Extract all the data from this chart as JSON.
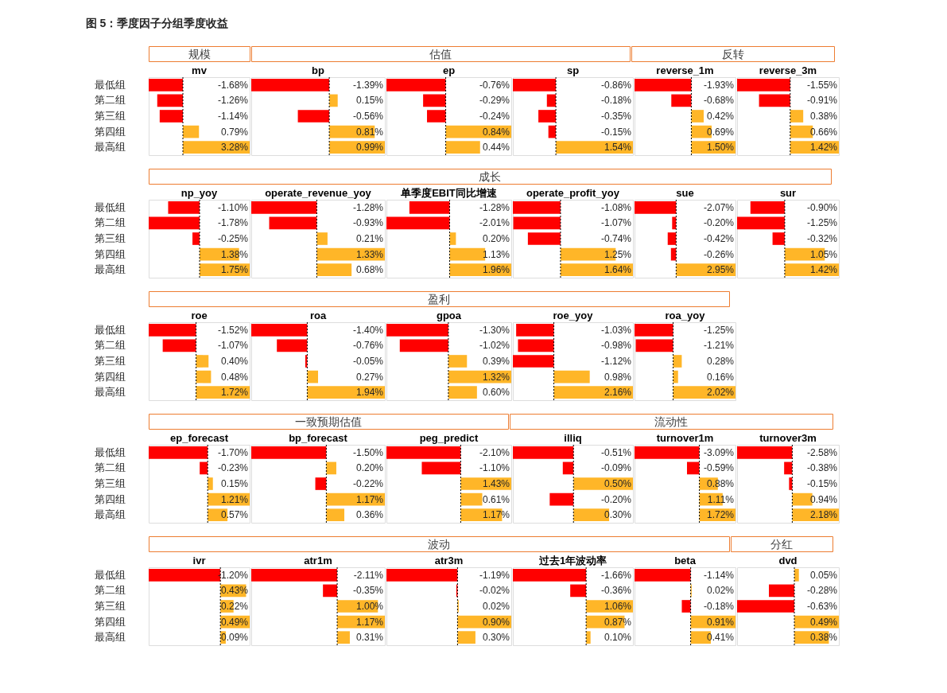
{
  "chart_data": [
    {
      "type": "other",
      "title": "图 5：季度因子分组季度收益"
    },
    {
      "type": "other",
      "title": "规模"
    },
    {
      "type": "bar",
      "orientation": "horizontal",
      "title": "mv",
      "categories": [
        "最低组",
        "第二组",
        "第三组",
        "第四组",
        "最高组"
      ],
      "values": [
        -1.68,
        -1.26,
        -1.14,
        0.79,
        3.28
      ],
      "colors": [
        "#ff0000",
        "#ff0000",
        "#ff0000",
        "#ffb628",
        "#ffb628"
      ],
      "value_labels": [
        "-1.68%",
        "-1.26%",
        "-1.14%",
        "0.79%",
        "3.28%"
      ],
      "ref_lines": [
        {
          "axis": "x",
          "value": 0,
          "color": "#000000",
          "line_style": "dashed"
        }
      ],
      "tick_labels": "y"
    },
    {
      "type": "other",
      "title": "估值"
    },
    {
      "type": "bar",
      "orientation": "horizontal",
      "title": "bp",
      "categories": [
        "最低组",
        "第二组",
        "第三组",
        "第四组",
        "最高组"
      ],
      "values": [
        -1.39,
        0.15,
        -0.56,
        0.81,
        0.99
      ],
      "colors": [
        "#ff0000",
        "#ffb628",
        "#ff0000",
        "#ffb628",
        "#ffb628"
      ],
      "value_labels": [
        "-1.39%",
        "0.15%",
        "-0.56%",
        "0.81%",
        "0.99%"
      ],
      "ref_lines": [
        {
          "axis": "x",
          "value": 0,
          "color": "#000000",
          "line_style": "dashed"
        }
      ],
      "tick_labels": false
    },
    {
      "type": "bar",
      "orientation": "horizontal",
      "title": "ep",
      "categories": [
        "最低组",
        "第二组",
        "第三组",
        "第四组",
        "最高组"
      ],
      "values": [
        -0.76,
        -0.29,
        -0.24,
        0.84,
        0.44
      ],
      "colors": [
        "#ff0000",
        "#ff0000",
        "#ff0000",
        "#ffb628",
        "#ffb628"
      ],
      "value_labels": [
        "-0.76%",
        "-0.29%",
        "-0.24%",
        "0.84%",
        "0.44%"
      ],
      "ref_lines": [
        {
          "axis": "x",
          "value": 0,
          "color": "#000000",
          "line_style": "dashed"
        }
      ],
      "tick_labels": false
    },
    {
      "type": "bar",
      "orientation": "horizontal",
      "title": "sp",
      "categories": [
        "最低组",
        "第二组",
        "第三组",
        "第四组",
        "最高组"
      ],
      "values": [
        -0.86,
        -0.18,
        -0.35,
        -0.15,
        1.54
      ],
      "colors": [
        "#ff0000",
        "#ff0000",
        "#ff0000",
        "#ff0000",
        "#ffb628"
      ],
      "value_labels": [
        "-0.86%",
        "-0.18%",
        "-0.35%",
        "-0.15%",
        "1.54%"
      ],
      "ref_lines": [
        {
          "axis": "x",
          "value": 0,
          "color": "#000000",
          "line_style": "dashed"
        }
      ],
      "tick_labels": false
    },
    {
      "type": "other",
      "title": "反转"
    },
    {
      "type": "bar",
      "orientation": "horizontal",
      "title": "reverse_1m",
      "categories": [
        "最低组",
        "第二组",
        "第三组",
        "第四组",
        "最高组"
      ],
      "values": [
        -1.93,
        -0.68,
        0.42,
        0.69,
        1.5
      ],
      "colors": [
        "#ff0000",
        "#ff0000",
        "#ffb628",
        "#ffb628",
        "#ffb628"
      ],
      "value_labels": [
        "-1.93%",
        "-0.68%",
        "0.42%",
        "0.69%",
        "1.50%"
      ],
      "ref_lines": [
        {
          "axis": "x",
          "value": 0,
          "color": "#000000",
          "line_style": "dashed"
        }
      ],
      "tick_labels": false
    },
    {
      "type": "bar",
      "orientation": "horizontal",
      "title": "reverse_3m",
      "categories": [
        "最低组",
        "第二组",
        "第三组",
        "第四组",
        "最高组"
      ],
      "values": [
        -1.55,
        -0.91,
        0.38,
        0.66,
        1.42
      ],
      "colors": [
        "#ff0000",
        "#ff0000",
        "#ffb628",
        "#ffb628",
        "#ffb628"
      ],
      "value_labels": [
        "-1.55%",
        "-0.91%",
        "0.38%",
        "0.66%",
        "1.42%"
      ],
      "ref_lines": [
        {
          "axis": "x",
          "value": 0,
          "color": "#000000",
          "line_style": "dashed"
        }
      ],
      "tick_labels": false
    },
    {
      "type": "other",
      "title": "成长"
    },
    {
      "type": "bar",
      "orientation": "horizontal",
      "title": "np_yoy",
      "categories": [
        "最低组",
        "第二组",
        "第三组",
        "第四组",
        "最高组"
      ],
      "values": [
        -1.1,
        -1.78,
        -0.25,
        1.38,
        1.75
      ],
      "colors": [
        "#ff0000",
        "#ff0000",
        "#ff0000",
        "#ffb628",
        "#ffb628"
      ],
      "value_labels": [
        "-1.10%",
        "-1.78%",
        "-0.25%",
        "1.38%",
        "1.75%"
      ],
      "ref_lines": [
        {
          "axis": "x",
          "value": 0,
          "color": "#000000",
          "line_style": "dashed"
        }
      ],
      "tick_labels": "y"
    },
    {
      "type": "bar",
      "orientation": "horizontal",
      "title": "operate_revenue_yoy",
      "categories": [
        "最低组",
        "第二组",
        "第三组",
        "第四组",
        "最高组"
      ],
      "values": [
        -1.28,
        -0.93,
        0.21,
        1.33,
        0.68
      ],
      "colors": [
        "#ff0000",
        "#ff0000",
        "#ffb628",
        "#ffb628",
        "#ffb628"
      ],
      "value_labels": [
        "-1.28%",
        "-0.93%",
        "0.21%",
        "1.33%",
        "0.68%"
      ],
      "ref_lines": [
        {
          "axis": "x",
          "value": 0,
          "color": "#000000",
          "line_style": "dashed"
        }
      ],
      "tick_labels": false
    },
    {
      "type": "bar",
      "orientation": "horizontal",
      "title": "单季度EBIT同比增速",
      "categories": [
        "最低组",
        "第二组",
        "第三组",
        "第四组",
        "最高组"
      ],
      "values": [
        -1.28,
        -2.01,
        0.2,
        1.13,
        1.96
      ],
      "colors": [
        "#ff0000",
        "#ff0000",
        "#ffb628",
        "#ffb628",
        "#ffb628"
      ],
      "value_labels": [
        "-1.28%",
        "-2.01%",
        "0.20%",
        "1.13%",
        "1.96%"
      ],
      "ref_lines": [
        {
          "axis": "x",
          "value": 0,
          "color": "#000000",
          "line_style": "dashed"
        }
      ],
      "tick_labels": false
    },
    {
      "type": "bar",
      "orientation": "horizontal",
      "title": "operate_profit_yoy",
      "categories": [
        "最低组",
        "第二组",
        "第三组",
        "第四组",
        "最高组"
      ],
      "values": [
        -1.08,
        -1.07,
        -0.74,
        1.25,
        1.64
      ],
      "colors": [
        "#ff0000",
        "#ff0000",
        "#ff0000",
        "#ffb628",
        "#ffb628"
      ],
      "value_labels": [
        "-1.08%",
        "-1.07%",
        "-0.74%",
        "1.25%",
        "1.64%"
      ],
      "ref_lines": [
        {
          "axis": "x",
          "value": 0,
          "color": "#000000",
          "line_style": "dashed"
        }
      ],
      "tick_labels": false
    },
    {
      "type": "bar",
      "orientation": "horizontal",
      "title": "sue",
      "categories": [
        "最低组",
        "第二组",
        "第三组",
        "第四组",
        "最高组"
      ],
      "values": [
        -2.07,
        -0.2,
        -0.42,
        -0.26,
        2.95
      ],
      "colors": [
        "#ff0000",
        "#ff0000",
        "#ff0000",
        "#ff0000",
        "#ffb628"
      ],
      "value_labels": [
        "-2.07%",
        "-0.20%",
        "-0.42%",
        "-0.26%",
        "2.95%"
      ],
      "ref_lines": [
        {
          "axis": "x",
          "value": 0,
          "color": "#000000",
          "line_style": "dashed"
        }
      ],
      "tick_labels": false
    },
    {
      "type": "bar",
      "orientation": "horizontal",
      "title": "sur",
      "categories": [
        "最低组",
        "第二组",
        "第三组",
        "第四组",
        "最高组"
      ],
      "values": [
        -0.9,
        -1.25,
        -0.32,
        1.05,
        1.42
      ],
      "colors": [
        "#ff0000",
        "#ff0000",
        "#ff0000",
        "#ffb628",
        "#ffb628"
      ],
      "value_labels": [
        "-0.90%",
        "-1.25%",
        "-0.32%",
        "1.05%",
        "1.42%"
      ],
      "ref_lines": [
        {
          "axis": "x",
          "value": 0,
          "color": "#000000",
          "line_style": "dashed"
        }
      ],
      "tick_labels": false
    },
    {
      "type": "other",
      "title": "盈利"
    },
    {
      "type": "bar",
      "orientation": "horizontal",
      "title": "roe",
      "categories": [
        "最低组",
        "第二组",
        "第三组",
        "第四组",
        "最高组"
      ],
      "values": [
        -1.52,
        -1.07,
        0.4,
        0.48,
        1.72
      ],
      "colors": [
        "#ff0000",
        "#ff0000",
        "#ffb628",
        "#ffb628",
        "#ffb628"
      ],
      "value_labels": [
        "-1.52%",
        "-1.07%",
        "0.40%",
        "0.48%",
        "1.72%"
      ],
      "ref_lines": [
        {
          "axis": "x",
          "value": 0,
          "color": "#000000",
          "line_style": "dashed"
        }
      ],
      "tick_labels": "y"
    },
    {
      "type": "bar",
      "orientation": "horizontal",
      "title": "roa",
      "categories": [
        "最低组",
        "第二组",
        "第三组",
        "第四组",
        "最高组"
      ],
      "values": [
        -1.4,
        -0.76,
        -0.05,
        0.27,
        1.94
      ],
      "colors": [
        "#ff0000",
        "#ff0000",
        "#ff0000",
        "#ffb628",
        "#ffb628"
      ],
      "value_labels": [
        "-1.40%",
        "-0.76%",
        "-0.05%",
        "0.27%",
        "1.94%"
      ],
      "ref_lines": [
        {
          "axis": "x",
          "value": 0,
          "color": "#000000",
          "line_style": "dashed"
        }
      ],
      "tick_labels": false
    },
    {
      "type": "bar",
      "orientation": "horizontal",
      "title": "gpoa",
      "categories": [
        "最低组",
        "第二组",
        "第三组",
        "第四组",
        "最高组"
      ],
      "values": [
        -1.3,
        -1.02,
        0.39,
        1.32,
        0.6
      ],
      "colors": [
        "#ff0000",
        "#ff0000",
        "#ffb628",
        "#ffb628",
        "#ffb628"
      ],
      "value_labels": [
        "-1.30%",
        "-1.02%",
        "0.39%",
        "1.32%",
        "0.60%"
      ],
      "ref_lines": [
        {
          "axis": "x",
          "value": 0,
          "color": "#000000",
          "line_style": "dashed"
        }
      ],
      "tick_labels": false
    },
    {
      "type": "bar",
      "orientation": "horizontal",
      "title": "roe_yoy",
      "categories": [
        "最低组",
        "第二组",
        "第三组",
        "第四组",
        "最高组"
      ],
      "values": [
        -1.03,
        -0.98,
        -1.12,
        0.98,
        2.16
      ],
      "colors": [
        "#ff0000",
        "#ff0000",
        "#ff0000",
        "#ffb628",
        "#ffb628"
      ],
      "value_labels": [
        "-1.03%",
        "-0.98%",
        "-1.12%",
        "0.98%",
        "2.16%"
      ],
      "ref_lines": [
        {
          "axis": "x",
          "value": 0,
          "color": "#000000",
          "line_style": "dashed"
        }
      ],
      "tick_labels": false
    },
    {
      "type": "bar",
      "orientation": "horizontal",
      "title": "roa_yoy",
      "categories": [
        "最低组",
        "第二组",
        "第三组",
        "第四组",
        "最高组"
      ],
      "values": [
        -1.25,
        -1.21,
        0.28,
        0.16,
        2.02
      ],
      "colors": [
        "#ff0000",
        "#ff0000",
        "#ffb628",
        "#ffb628",
        "#ffb628"
      ],
      "value_labels": [
        "-1.25%",
        "-1.21%",
        "0.28%",
        "0.16%",
        "2.02%"
      ],
      "ref_lines": [
        {
          "axis": "x",
          "value": 0,
          "color": "#000000",
          "line_style": "dashed"
        }
      ],
      "tick_labels": false
    },
    {
      "type": "other",
      "title": "一致预期估值"
    },
    {
      "type": "bar",
      "orientation": "horizontal",
      "title": "ep_forecast",
      "categories": [
        "最低组",
        "第二组",
        "第三组",
        "第四组",
        "最高组"
      ],
      "values": [
        -1.7,
        -0.23,
        0.15,
        1.21,
        0.57
      ],
      "colors": [
        "#ff0000",
        "#ff0000",
        "#ffb628",
        "#ffb628",
        "#ffb628"
      ],
      "value_labels": [
        "-1.70%",
        "-0.23%",
        "0.15%",
        "1.21%",
        "0.57%"
      ],
      "ref_lines": [
        {
          "axis": "x",
          "value": 0,
          "color": "#000000",
          "line_style": "dashed"
        }
      ],
      "tick_labels": "y"
    },
    {
      "type": "bar",
      "orientation": "horizontal",
      "title": "bp_forecast",
      "categories": [
        "最低组",
        "第二组",
        "第三组",
        "第四组",
        "最高组"
      ],
      "values": [
        -1.5,
        0.2,
        -0.22,
        1.17,
        0.36
      ],
      "colors": [
        "#ff0000",
        "#ffb628",
        "#ff0000",
        "#ffb628",
        "#ffb628"
      ],
      "value_labels": [
        "-1.50%",
        "0.20%",
        "-0.22%",
        "1.17%",
        "0.36%"
      ],
      "ref_lines": [
        {
          "axis": "x",
          "value": 0,
          "color": "#000000",
          "line_style": "dashed"
        }
      ],
      "tick_labels": false
    },
    {
      "type": "bar",
      "orientation": "horizontal",
      "title": "peg_predict",
      "categories": [
        "最低组",
        "第二组",
        "第三组",
        "第四组",
        "最高组"
      ],
      "values": [
        -2.1,
        -1.1,
        1.43,
        0.61,
        1.17
      ],
      "colors": [
        "#ff0000",
        "#ff0000",
        "#ffb628",
        "#ffb628",
        "#ffb628"
      ],
      "value_labels": [
        "-2.10%",
        "-1.10%",
        "1.43%",
        "0.61%",
        "1.17%"
      ],
      "ref_lines": [
        {
          "axis": "x",
          "value": 0,
          "color": "#000000",
          "line_style": "dashed"
        }
      ],
      "tick_labels": false
    },
    {
      "type": "other",
      "title": "流动性"
    },
    {
      "type": "bar",
      "orientation": "horizontal",
      "title": "illiq",
      "categories": [
        "最低组",
        "第二组",
        "第三组",
        "第四组",
        "最高组"
      ],
      "values": [
        -0.51,
        -0.09,
        0.5,
        -0.2,
        0.3
      ],
      "colors": [
        "#ff0000",
        "#ff0000",
        "#ffb628",
        "#ff0000",
        "#ffb628"
      ],
      "value_labels": [
        "-0.51%",
        "-0.09%",
        "0.50%",
        "-0.20%",
        "0.30%"
      ],
      "ref_lines": [
        {
          "axis": "x",
          "value": 0,
          "color": "#000000",
          "line_style": "dashed"
        }
      ],
      "tick_labels": false
    },
    {
      "type": "bar",
      "orientation": "horizontal",
      "title": "turnover1m",
      "categories": [
        "最低组",
        "第二组",
        "第三组",
        "第四组",
        "最高组"
      ],
      "values": [
        -3.09,
        -0.59,
        0.88,
        1.11,
        1.72
      ],
      "colors": [
        "#ff0000",
        "#ff0000",
        "#ffb628",
        "#ffb628",
        "#ffb628"
      ],
      "value_labels": [
        "-3.09%",
        "-0.59%",
        "0.88%",
        "1.11%",
        "1.72%"
      ],
      "ref_lines": [
        {
          "axis": "x",
          "value": 0,
          "color": "#000000",
          "line_style": "dashed"
        }
      ],
      "tick_labels": false
    },
    {
      "type": "bar",
      "orientation": "horizontal",
      "title": "turnover3m",
      "categories": [
        "最低组",
        "第二组",
        "第三组",
        "第四组",
        "最高组"
      ],
      "values": [
        -2.58,
        -0.38,
        -0.15,
        0.94,
        2.18
      ],
      "colors": [
        "#ff0000",
        "#ff0000",
        "#ff0000",
        "#ffb628",
        "#ffb628"
      ],
      "value_labels": [
        "-2.58%",
        "-0.38%",
        "-0.15%",
        "0.94%",
        "2.18%"
      ],
      "ref_lines": [
        {
          "axis": "x",
          "value": 0,
          "color": "#000000",
          "line_style": "dashed"
        }
      ],
      "tick_labels": false
    },
    {
      "type": "other",
      "title": "波动"
    },
    {
      "type": "bar",
      "orientation": "horizontal",
      "title": "ivr",
      "categories": [
        "最低组",
        "第二组",
        "第三组",
        "第四组",
        "最高组"
      ],
      "values": [
        -1.2,
        0.43,
        0.22,
        0.49,
        0.09
      ],
      "colors": [
        "#ff0000",
        "#ffb628",
        "#ffb628",
        "#ffb628",
        "#ffb628"
      ],
      "value_labels": [
        "-1.20%",
        "0.43%",
        "0.22%",
        "0.49%",
        "0.09%"
      ],
      "ref_lines": [
        {
          "axis": "x",
          "value": 0,
          "color": "#000000",
          "line_style": "dashed"
        }
      ],
      "tick_labels": "y"
    },
    {
      "type": "bar",
      "orientation": "horizontal",
      "title": "atr1m",
      "categories": [
        "最低组",
        "第二组",
        "第三组",
        "第四组",
        "最高组"
      ],
      "values": [
        -2.11,
        -0.35,
        1.0,
        1.17,
        0.31
      ],
      "colors": [
        "#ff0000",
        "#ff0000",
        "#ffb628",
        "#ffb628",
        "#ffb628"
      ],
      "value_labels": [
        "-2.11%",
        "-0.35%",
        "1.00%",
        "1.17%",
        "0.31%"
      ],
      "ref_lines": [
        {
          "axis": "x",
          "value": 0,
          "color": "#000000",
          "line_style": "dashed"
        }
      ],
      "tick_labels": false
    },
    {
      "type": "bar",
      "orientation": "horizontal",
      "title": "atr3m",
      "categories": [
        "最低组",
        "第二组",
        "第三组",
        "第四组",
        "最高组"
      ],
      "values": [
        -1.19,
        -0.02,
        0.02,
        0.9,
        0.3
      ],
      "colors": [
        "#ff0000",
        "#ff0000",
        "#ffb628",
        "#ffb628",
        "#ffb628"
      ],
      "value_labels": [
        "-1.19%",
        "-0.02%",
        "0.02%",
        "0.90%",
        "0.30%"
      ],
      "ref_lines": [
        {
          "axis": "x",
          "value": 0,
          "color": "#000000",
          "line_style": "dashed"
        }
      ],
      "tick_labels": false
    },
    {
      "type": "bar",
      "orientation": "horizontal",
      "title": "过去1年波动率",
      "categories": [
        "最低组",
        "第二组",
        "第三组",
        "第四组",
        "最高组"
      ],
      "values": [
        -1.66,
        -0.36,
        1.06,
        0.87,
        0.1
      ],
      "colors": [
        "#ff0000",
        "#ff0000",
        "#ffb628",
        "#ffb628",
        "#ffb628"
      ],
      "value_labels": [
        "-1.66%",
        "-0.36%",
        "1.06%",
        "0.87%",
        "0.10%"
      ],
      "ref_lines": [
        {
          "axis": "x",
          "value": 0,
          "color": "#000000",
          "line_style": "dashed"
        }
      ],
      "tick_labels": false
    },
    {
      "type": "bar",
      "orientation": "horizontal",
      "title": "beta",
      "categories": [
        "最低组",
        "第二组",
        "第三组",
        "第四组",
        "最高组"
      ],
      "values": [
        -1.14,
        0.02,
        -0.18,
        0.91,
        0.41
      ],
      "colors": [
        "#ff0000",
        "#ffb628",
        "#ff0000",
        "#ffb628",
        "#ffb628"
      ],
      "value_labels": [
        "-1.14%",
        "0.02%",
        "-0.18%",
        "0.91%",
        "0.41%"
      ],
      "ref_lines": [
        {
          "axis": "x",
          "value": 0,
          "color": "#000000",
          "line_style": "dashed"
        }
      ],
      "tick_labels": false
    },
    {
      "type": "other",
      "title": "分红"
    },
    {
      "type": "bar",
      "orientation": "horizontal",
      "title": "dvd",
      "categories": [
        "最低组",
        "第二组",
        "第三组",
        "第四组",
        "最高组"
      ],
      "values": [
        0.05,
        -0.28,
        -0.63,
        0.49,
        0.38
      ],
      "colors": [
        "#ffb628",
        "#ff0000",
        "#ff0000",
        "#ffb628",
        "#ffb628"
      ],
      "value_labels": [
        "0.05%",
        "-0.28%",
        "-0.63%",
        "0.49%",
        "0.38%"
      ],
      "ref_lines": [
        {
          "axis": "x",
          "value": 0,
          "color": "#000000",
          "line_style": "dashed"
        }
      ],
      "tick_labels": false
    }
  ]
}
